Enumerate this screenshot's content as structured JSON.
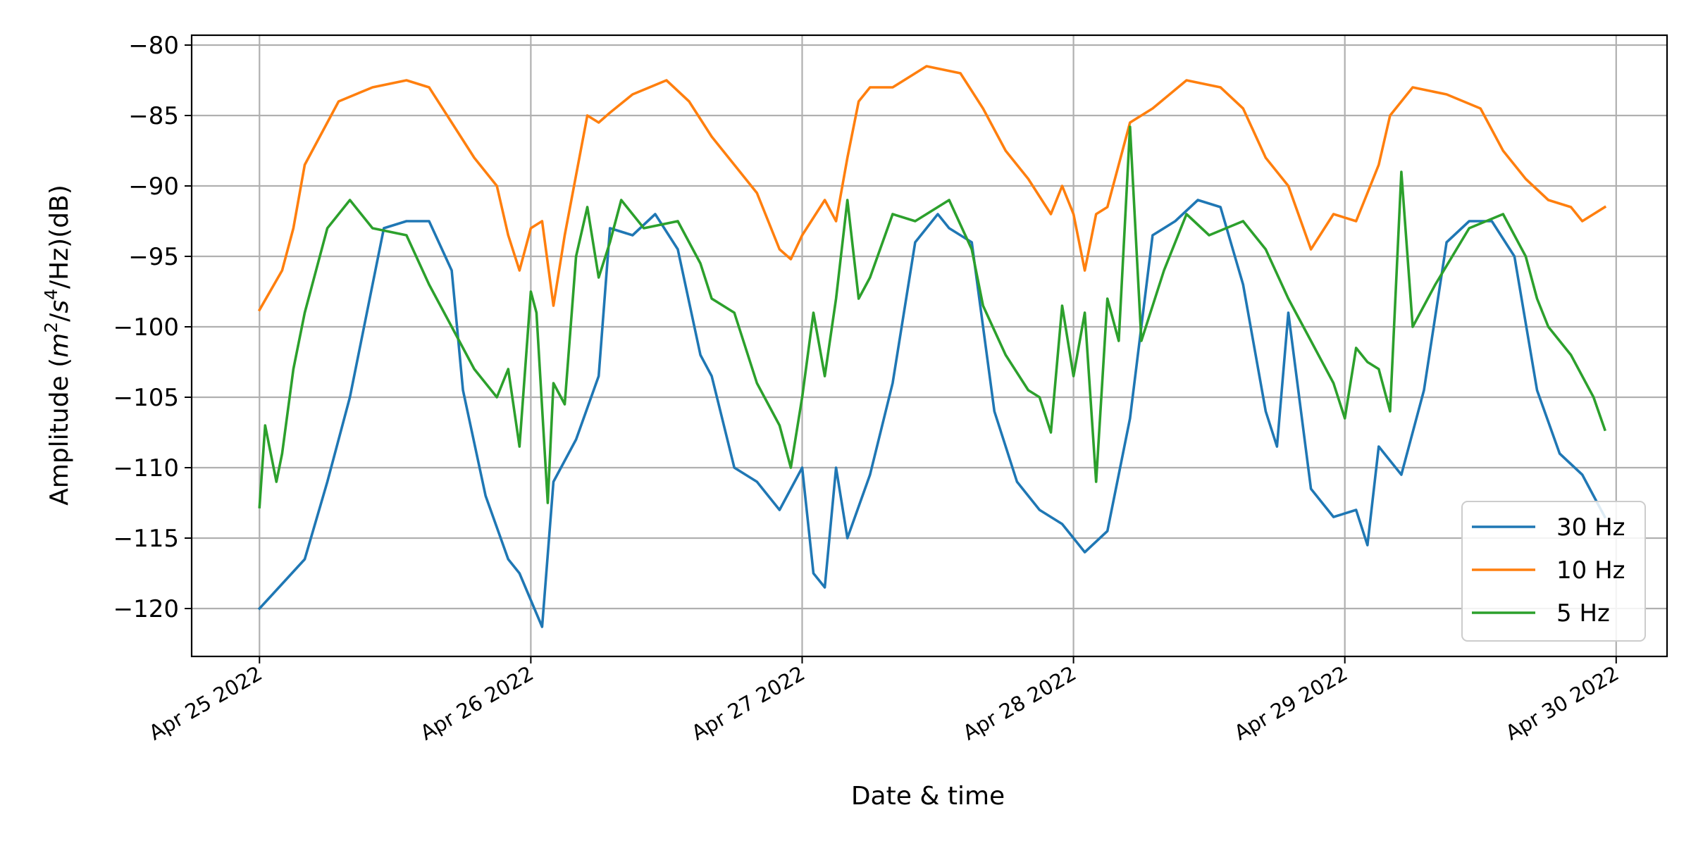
{
  "chart_data": {
    "type": "line",
    "xlabel": "Date & time",
    "ylabel": "Amplitude (m²/s⁴/Hz)(dB)",
    "ylabel_parts": {
      "before": "Amplitude (",
      "m": "m",
      "exp2": "2",
      "slash1": "/",
      "s": "s",
      "exp4": "4",
      "after": "/Hz)(dB)"
    },
    "xlim": [
      "2022-04-24T18:00",
      "2022-04-30T04:30"
    ],
    "ylim": [
      -123.4,
      -79.3
    ],
    "x_ticks": [
      "2022-04-25",
      "2022-04-26",
      "2022-04-27",
      "2022-04-28",
      "2022-04-29",
      "2022-04-30"
    ],
    "x_tick_labels": [
      "Apr 25 2022",
      "Apr 26 2022",
      "Apr 27 2022",
      "Apr 28 2022",
      "Apr 29 2022",
      "Apr 30 2022"
    ],
    "y_ticks": [
      -80,
      -85,
      -90,
      -95,
      -100,
      -105,
      -110,
      -115,
      -120
    ],
    "y_tick_labels": [
      "−80",
      "−85",
      "−90",
      "−95",
      "−100",
      "−105",
      "−110",
      "−115",
      "−120"
    ],
    "grid": true,
    "legend_position": "lower-right",
    "colors": {
      "30 Hz": "#1f77b4",
      "10 Hz": "#ff7f0e",
      "5 Hz": "#2ca02c",
      "grid": "#b0b0b0"
    },
    "series": [
      {
        "name": "30 Hz",
        "x": [
          "2022-04-25T00:00",
          "2022-04-25T04:00",
          "2022-04-25T06:00",
          "2022-04-25T08:00",
          "2022-04-25T11:00",
          "2022-04-25T13:00",
          "2022-04-25T15:00",
          "2022-04-25T17:00",
          "2022-04-25T18:00",
          "2022-04-25T20:00",
          "2022-04-25T22:00",
          "2022-04-25T23:00",
          "2022-04-26T01:00",
          "2022-04-26T02:00",
          "2022-04-26T04:00",
          "2022-04-26T06:00",
          "2022-04-26T07:00",
          "2022-04-26T09:00",
          "2022-04-26T11:00",
          "2022-04-26T13:00",
          "2022-04-26T15:00",
          "2022-04-26T16:00",
          "2022-04-26T18:00",
          "2022-04-26T20:00",
          "2022-04-26T22:00",
          "2022-04-27T00:00",
          "2022-04-27T01:00",
          "2022-04-27T02:00",
          "2022-04-27T03:00",
          "2022-04-27T04:00",
          "2022-04-27T06:00",
          "2022-04-27T08:00",
          "2022-04-27T10:00",
          "2022-04-27T12:00",
          "2022-04-27T13:00",
          "2022-04-27T15:00",
          "2022-04-27T17:00",
          "2022-04-27T19:00",
          "2022-04-27T21:00",
          "2022-04-27T23:00",
          "2022-04-28T01:00",
          "2022-04-28T03:00",
          "2022-04-28T05:00",
          "2022-04-28T07:00",
          "2022-04-28T09:00",
          "2022-04-28T11:00",
          "2022-04-28T13:00",
          "2022-04-28T15:00",
          "2022-04-28T17:00",
          "2022-04-28T18:00",
          "2022-04-28T19:00",
          "2022-04-28T21:00",
          "2022-04-28T23:00",
          "2022-04-29T01:00",
          "2022-04-29T02:00",
          "2022-04-29T03:00",
          "2022-04-29T05:00",
          "2022-04-29T07:00",
          "2022-04-29T09:00",
          "2022-04-29T11:00",
          "2022-04-29T13:00",
          "2022-04-29T15:00",
          "2022-04-29T17:00",
          "2022-04-29T19:00",
          "2022-04-29T21:00",
          "2022-04-29T22:00",
          "2022-04-29T23:00"
        ],
        "y": [
          -120.0,
          -116.5,
          -111.0,
          -105.0,
          -93.0,
          -92.5,
          -92.5,
          -96.0,
          -104.5,
          -112.0,
          -116.5,
          -117.5,
          -121.3,
          -111.0,
          -108.0,
          -103.5,
          -93.0,
          -93.5,
          -92.0,
          -94.5,
          -102.0,
          -103.5,
          -110.0,
          -111.0,
          -113.0,
          -110.0,
          -117.5,
          -118.5,
          -110.0,
          -115.0,
          -110.5,
          -104.0,
          -94.0,
          -92.0,
          -93.0,
          -94.0,
          -106.0,
          -111.0,
          -113.0,
          -114.0,
          -116.0,
          -114.5,
          -106.5,
          -93.5,
          -92.5,
          -91.0,
          -91.5,
          -97.0,
          -106.0,
          -108.5,
          -99.0,
          -111.5,
          -113.5,
          -113.0,
          -115.5,
          -108.5,
          -110.5,
          -104.5,
          -94.0,
          -92.5,
          -92.5,
          -95.0,
          -104.5,
          -109.0,
          -110.5,
          -112.0,
          -113.5
        ]
      },
      {
        "name": "10 Hz",
        "x": [
          "2022-04-25T00:00",
          "2022-04-25T02:00",
          "2022-04-25T03:00",
          "2022-04-25T04:00",
          "2022-04-25T07:00",
          "2022-04-25T10:00",
          "2022-04-25T13:00",
          "2022-04-25T15:00",
          "2022-04-25T17:00",
          "2022-04-25T19:00",
          "2022-04-25T21:00",
          "2022-04-25T22:00",
          "2022-04-25T23:00",
          "2022-04-26T00:00",
          "2022-04-26T01:00",
          "2022-04-26T02:00",
          "2022-04-26T03:00",
          "2022-04-26T05:00",
          "2022-04-26T06:00",
          "2022-04-26T07:00",
          "2022-04-26T09:00",
          "2022-04-26T12:00",
          "2022-04-26T14:00",
          "2022-04-26T16:00",
          "2022-04-26T18:00",
          "2022-04-26T20:00",
          "2022-04-26T22:00",
          "2022-04-26T23:00",
          "2022-04-27T00:00",
          "2022-04-27T02:00",
          "2022-04-27T03:00",
          "2022-04-27T04:00",
          "2022-04-27T05:00",
          "2022-04-27T06:00",
          "2022-04-27T08:00",
          "2022-04-27T11:00",
          "2022-04-27T14:00",
          "2022-04-27T16:00",
          "2022-04-27T18:00",
          "2022-04-27T20:00",
          "2022-04-27T22:00",
          "2022-04-27T23:00",
          "2022-04-28T00:00",
          "2022-04-28T01:00",
          "2022-04-28T02:00",
          "2022-04-28T03:00",
          "2022-04-28T05:00",
          "2022-04-28T07:00",
          "2022-04-28T10:00",
          "2022-04-28T13:00",
          "2022-04-28T15:00",
          "2022-04-28T17:00",
          "2022-04-28T19:00",
          "2022-04-28T21:00",
          "2022-04-28T23:00",
          "2022-04-29T01:00",
          "2022-04-29T02:00",
          "2022-04-29T03:00",
          "2022-04-29T04:00",
          "2022-04-29T06:00",
          "2022-04-29T09:00",
          "2022-04-29T12:00",
          "2022-04-29T14:00",
          "2022-04-29T16:00",
          "2022-04-29T18:00",
          "2022-04-29T20:00",
          "2022-04-29T21:00",
          "2022-04-29T22:00",
          "2022-04-29T23:00"
        ],
        "y": [
          -98.8,
          -96.0,
          -93.0,
          -88.5,
          -84.0,
          -83.0,
          -82.5,
          -83.0,
          -85.5,
          -88.0,
          -90.0,
          -93.5,
          -96.0,
          -93.0,
          -92.5,
          -98.5,
          -93.5,
          -85.0,
          -85.5,
          -84.8,
          -83.5,
          -82.5,
          -84.0,
          -86.5,
          -88.5,
          -90.5,
          -94.5,
          -95.2,
          -93.5,
          -91.0,
          -92.5,
          -88.0,
          -84.0,
          -83.0,
          -83.0,
          -81.5,
          -82.0,
          -84.5,
          -87.5,
          -89.5,
          -92.0,
          -90.0,
          -92.0,
          -96.0,
          -92.0,
          -91.5,
          -85.5,
          -84.5,
          -82.5,
          -83.0,
          -84.5,
          -88.0,
          -90.0,
          -94.5,
          -92.0,
          -92.5,
          -90.5,
          -88.5,
          -85.0,
          -83.0,
          -83.5,
          -84.5,
          -87.5,
          -89.5,
          -91.0,
          -91.5,
          -92.5,
          -92.0,
          -91.5
        ]
      },
      {
        "name": "5 Hz",
        "x": [
          "2022-04-25T00:00",
          "2022-04-25T00:30",
          "2022-04-25T01:30",
          "2022-04-25T02:00",
          "2022-04-25T03:00",
          "2022-04-25T04:00",
          "2022-04-25T06:00",
          "2022-04-25T08:00",
          "2022-04-25T10:00",
          "2022-04-25T13:00",
          "2022-04-25T15:00",
          "2022-04-25T17:00",
          "2022-04-25T19:00",
          "2022-04-25T21:00",
          "2022-04-25T22:00",
          "2022-04-25T23:00",
          "2022-04-26T00:00",
          "2022-04-26T00:30",
          "2022-04-26T01:30",
          "2022-04-26T02:00",
          "2022-04-26T03:00",
          "2022-04-26T04:00",
          "2022-04-26T05:00",
          "2022-04-26T06:00",
          "2022-04-26T07:00",
          "2022-04-26T08:00",
          "2022-04-26T10:00",
          "2022-04-26T13:00",
          "2022-04-26T15:00",
          "2022-04-26T16:00",
          "2022-04-26T18:00",
          "2022-04-26T20:00",
          "2022-04-26T22:00",
          "2022-04-26T23:00",
          "2022-04-27T00:00",
          "2022-04-27T01:00",
          "2022-04-27T02:00",
          "2022-04-27T03:00",
          "2022-04-27T04:00",
          "2022-04-27T05:00",
          "2022-04-27T06:00",
          "2022-04-27T08:00",
          "2022-04-27T10:00",
          "2022-04-27T13:00",
          "2022-04-27T15:00",
          "2022-04-27T16:00",
          "2022-04-27T18:00",
          "2022-04-27T20:00",
          "2022-04-27T21:00",
          "2022-04-27T22:00",
          "2022-04-27T23:00",
          "2022-04-28T00:00",
          "2022-04-28T01:00",
          "2022-04-28T02:00",
          "2022-04-28T03:00",
          "2022-04-28T04:00",
          "2022-04-28T05:00",
          "2022-04-28T06:00",
          "2022-04-28T08:00",
          "2022-04-28T10:00",
          "2022-04-28T12:00",
          "2022-04-28T15:00",
          "2022-04-28T17:00",
          "2022-04-28T19:00",
          "2022-04-28T21:00",
          "2022-04-28T23:00",
          "2022-04-29T00:00",
          "2022-04-29T01:00",
          "2022-04-29T02:00",
          "2022-04-29T03:00",
          "2022-04-29T04:00",
          "2022-04-29T05:00",
          "2022-04-29T06:00",
          "2022-04-29T08:00",
          "2022-04-29T11:00",
          "2022-04-29T14:00",
          "2022-04-29T16:00",
          "2022-04-29T17:00",
          "2022-04-29T18:00",
          "2022-04-29T20:00",
          "2022-04-29T22:00",
          "2022-04-29T23:00"
        ],
        "y": [
          -112.8,
          -107.0,
          -111.0,
          -109.0,
          -103.0,
          -99.0,
          -93.0,
          -91.0,
          -93.0,
          -93.5,
          -97.0,
          -100.0,
          -103.0,
          -105.0,
          -103.0,
          -108.5,
          -97.5,
          -99.0,
          -112.5,
          -104.0,
          -105.5,
          -95.0,
          -91.5,
          -96.5,
          -94.0,
          -91.0,
          -93.0,
          -92.5,
          -95.5,
          -98.0,
          -99.0,
          -104.0,
          -107.0,
          -110.0,
          -105.0,
          -99.0,
          -103.5,
          -98.0,
          -91.0,
          -98.0,
          -96.5,
          -92.0,
          -92.5,
          -91.0,
          -94.5,
          -98.5,
          -102.0,
          -104.5,
          -105.0,
          -107.5,
          -98.5,
          -103.5,
          -99.0,
          -111.0,
          -98.0,
          -101.0,
          -85.8,
          -101.0,
          -96.0,
          -92.0,
          -93.5,
          -92.5,
          -94.5,
          -98.0,
          -101.0,
          -104.0,
          -106.5,
          -101.5,
          -102.5,
          -103.0,
          -106.0,
          -89.0,
          -100.0,
          -97.0,
          -93.0,
          -92.0,
          -95.0,
          -98.0,
          -100.0,
          -102.0,
          -105.0,
          -107.3
        ]
      }
    ]
  }
}
